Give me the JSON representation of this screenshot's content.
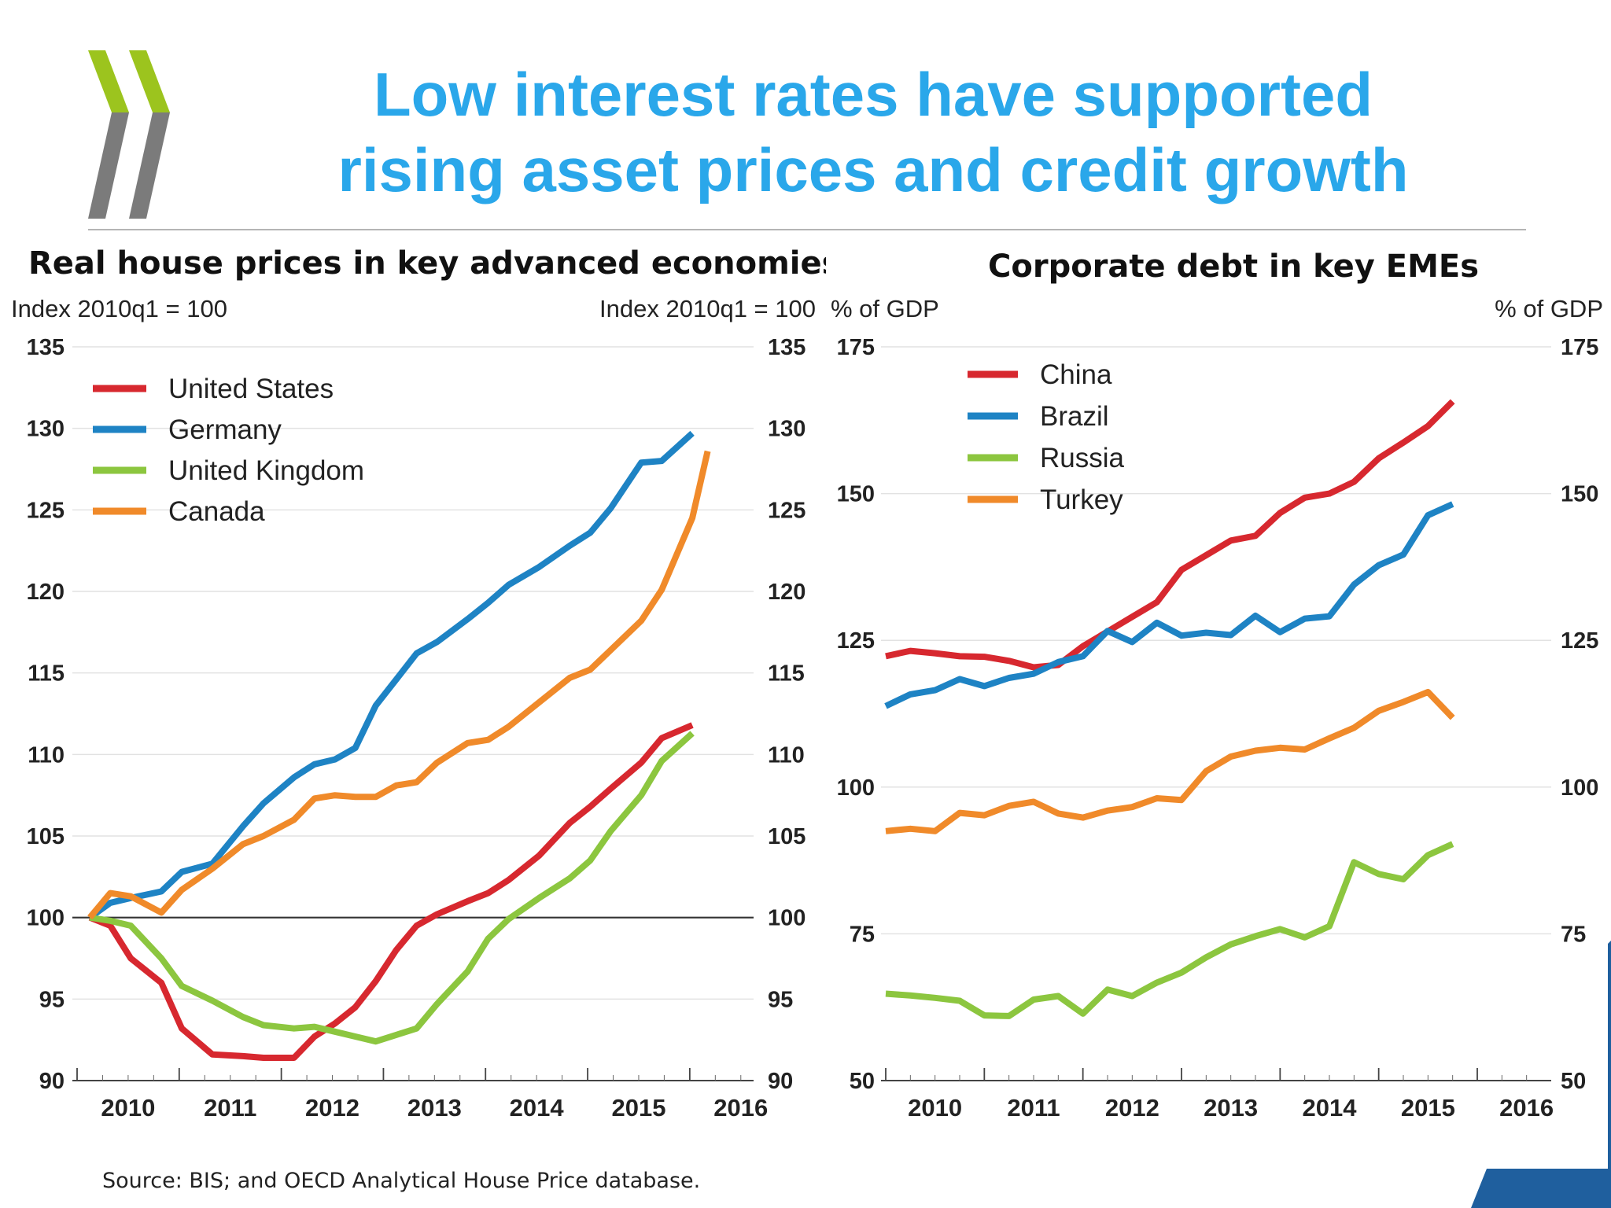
{
  "slide": {
    "title_line1": "Low interest rates have supported",
    "title_line2": "rising asset prices and credit growth",
    "source": "Source: BIS; and OECD Analytical House Price database.",
    "logo": "oecd-chevron-logo"
  },
  "colors": {
    "title": "#2aa7ea",
    "logo_green": "#9cc41e",
    "logo_grey": "#7b7b7b",
    "corner_blue": "#1f5f9e",
    "United States": "#d7282f",
    "Germany": "#1e83c4",
    "United Kingdom": "#8cc63f",
    "Canada": "#f08a2a",
    "China": "#d7282f",
    "Brazil": "#1e83c4",
    "Russia": "#8cc63f",
    "Turkey": "#f08a2a"
  },
  "chart_data": [
    {
      "type": "line",
      "title": "Real house prices in key advanced economies",
      "ylabel_left": "Index 2010q1 = 100",
      "ylabel_right": "Index 2010q1 = 100",
      "xlabel": "",
      "x_ticks": [
        "2010",
        "2011",
        "2012",
        "2013",
        "2014",
        "2015",
        "2016"
      ],
      "xlim": [
        2009.875,
        2016.5
      ],
      "ylim": [
        90,
        135
      ],
      "yticks": [
        135,
        130,
        125,
        120,
        115,
        110,
        105,
        100,
        95,
        90
      ],
      "reference_line": 100,
      "grid": true,
      "legend_position": "top-left",
      "series": [
        {
          "name": "United States",
          "x": [
            2010.0,
            2010.2,
            2010.4,
            2010.7,
            2010.9,
            2011.2,
            2011.5,
            2011.7,
            2012.0,
            2012.2,
            2012.4,
            2012.6,
            2012.8,
            2013.0,
            2013.2,
            2013.4,
            2013.7,
            2013.9,
            2014.1,
            2014.4,
            2014.7,
            2014.9,
            2015.1,
            2015.4,
            2015.6,
            2015.9
          ],
          "values": [
            100.0,
            99.5,
            97.5,
            96.0,
            93.2,
            91.6,
            91.5,
            91.4,
            91.4,
            92.7,
            93.5,
            94.5,
            96.1,
            98.0,
            99.5,
            100.2,
            101.0,
            101.5,
            102.3,
            103.8,
            105.8,
            106.8,
            107.9,
            109.5,
            111.0,
            111.8
          ]
        },
        {
          "name": "Germany",
          "x": [
            2010.0,
            2010.2,
            2010.4,
            2010.7,
            2010.9,
            2011.2,
            2011.5,
            2011.7,
            2012.0,
            2012.2,
            2012.4,
            2012.6,
            2012.8,
            2013.0,
            2013.2,
            2013.4,
            2013.7,
            2013.9,
            2014.1,
            2014.4,
            2014.7,
            2014.9,
            2015.1,
            2015.4,
            2015.6,
            2015.9
          ],
          "values": [
            100.0,
            100.9,
            101.2,
            101.6,
            102.8,
            103.3,
            105.6,
            107.0,
            108.6,
            109.4,
            109.7,
            110.4,
            113.0,
            114.6,
            116.2,
            116.9,
            118.3,
            119.3,
            120.4,
            121.5,
            122.8,
            123.6,
            125.1,
            127.9,
            128.0,
            129.7
          ]
        },
        {
          "name": "United Kingdom",
          "x": [
            2010.0,
            2010.2,
            2010.4,
            2010.7,
            2010.9,
            2011.2,
            2011.5,
            2011.7,
            2012.0,
            2012.2,
            2012.4,
            2012.6,
            2012.8,
            2013.0,
            2013.2,
            2013.4,
            2013.7,
            2013.9,
            2014.1,
            2014.4,
            2014.7,
            2014.9,
            2015.1,
            2015.4,
            2015.6,
            2015.9
          ],
          "values": [
            100.0,
            99.8,
            99.5,
            97.5,
            95.8,
            94.9,
            93.9,
            93.4,
            93.2,
            93.3,
            93.0,
            92.7,
            92.4,
            92.8,
            93.2,
            94.7,
            96.7,
            98.7,
            99.9,
            101.2,
            102.4,
            103.5,
            105.3,
            107.5,
            109.6,
            111.3
          ]
        },
        {
          "name": "Canada",
          "x": [
            2010.0,
            2010.2,
            2010.4,
            2010.7,
            2010.9,
            2011.2,
            2011.5,
            2011.7,
            2012.0,
            2012.2,
            2012.4,
            2012.6,
            2012.8,
            2013.0,
            2013.2,
            2013.4,
            2013.7,
            2013.9,
            2014.1,
            2014.4,
            2014.7,
            2014.9,
            2015.1,
            2015.4,
            2015.6,
            2015.9,
            2016.05
          ],
          "values": [
            100.0,
            101.5,
            101.3,
            100.3,
            101.7,
            103.0,
            104.5,
            105.0,
            106.0,
            107.3,
            107.5,
            107.4,
            107.4,
            108.1,
            108.3,
            109.5,
            110.7,
            110.9,
            111.7,
            113.2,
            114.7,
            115.2,
            116.4,
            118.2,
            120.1,
            124.5,
            128.6
          ]
        }
      ]
    },
    {
      "type": "line",
      "title": "Corporate debt in key EMEs",
      "ylabel_left": "% of GDP",
      "ylabel_right": "% of GDP",
      "xlabel": "",
      "x_ticks": [
        "2010",
        "2011",
        "2012",
        "2013",
        "2014",
        "2015",
        "2016"
      ],
      "xlim": [
        2009.875,
        2016.625
      ],
      "ylim": [
        50,
        175
      ],
      "yticks": [
        175,
        150,
        125,
        100,
        75,
        50
      ],
      "grid": true,
      "legend_position": "top-left",
      "series": [
        {
          "name": "China",
          "x": [
            2009.875,
            2010.125,
            2010.375,
            2010.625,
            2010.875,
            2011.125,
            2011.375,
            2011.625,
            2011.875,
            2012.125,
            2012.375,
            2012.625,
            2012.875,
            2013.125,
            2013.375,
            2013.625,
            2013.875,
            2014.125,
            2014.375,
            2014.625,
            2014.875,
            2015.125,
            2015.375,
            2015.625
          ],
          "values": [
            122.3,
            123.2,
            122.8,
            122.3,
            122.2,
            121.5,
            120.4,
            120.8,
            124.0,
            126.5,
            129.0,
            131.5,
            137.0,
            139.5,
            142.0,
            142.8,
            146.7,
            149.3,
            150.0,
            152.0,
            156.0,
            158.7,
            161.5,
            165.7
          ]
        },
        {
          "name": "Brazil",
          "x": [
            2009.875,
            2010.125,
            2010.375,
            2010.625,
            2010.875,
            2011.125,
            2011.375,
            2011.625,
            2011.875,
            2012.125,
            2012.375,
            2012.625,
            2012.875,
            2013.125,
            2013.375,
            2013.625,
            2013.875,
            2014.125,
            2014.375,
            2014.625,
            2014.875,
            2015.125,
            2015.375,
            2015.625
          ],
          "values": [
            113.8,
            115.8,
            116.5,
            118.4,
            117.2,
            118.6,
            119.3,
            121.3,
            122.3,
            126.6,
            124.7,
            128.0,
            125.8,
            126.3,
            125.9,
            129.2,
            126.4,
            128.7,
            129.1,
            134.5,
            137.8,
            139.6,
            146.3,
            148.2
          ]
        },
        {
          "name": "Russia",
          "x": [
            2009.875,
            2010.125,
            2010.375,
            2010.625,
            2010.875,
            2011.125,
            2011.375,
            2011.625,
            2011.875,
            2012.125,
            2012.375,
            2012.625,
            2012.875,
            2013.125,
            2013.375,
            2013.625,
            2013.875,
            2014.125,
            2014.375,
            2014.625,
            2014.875,
            2015.125,
            2015.375,
            2015.625
          ],
          "values": [
            64.8,
            64.5,
            64.1,
            63.6,
            61.1,
            61.0,
            63.8,
            64.4,
            61.4,
            65.5,
            64.4,
            66.7,
            68.4,
            71.0,
            73.2,
            74.6,
            75.8,
            74.4,
            76.3,
            87.2,
            85.2,
            84.3,
            88.4,
            90.3
          ]
        },
        {
          "name": "Turkey",
          "x": [
            2009.875,
            2010.125,
            2010.375,
            2010.625,
            2010.875,
            2011.125,
            2011.375,
            2011.625,
            2011.875,
            2012.125,
            2012.375,
            2012.625,
            2012.875,
            2013.125,
            2013.375,
            2013.625,
            2013.875,
            2014.125,
            2014.375,
            2014.625,
            2014.875,
            2015.125,
            2015.375,
            2015.625
          ],
          "values": [
            92.5,
            92.9,
            92.5,
            95.6,
            95.2,
            96.8,
            97.5,
            95.5,
            94.8,
            96.0,
            96.6,
            98.1,
            97.8,
            102.7,
            105.2,
            106.2,
            106.7,
            106.4,
            108.3,
            110.1,
            113.0,
            114.5,
            116.2,
            111.8
          ]
        }
      ]
    }
  ]
}
